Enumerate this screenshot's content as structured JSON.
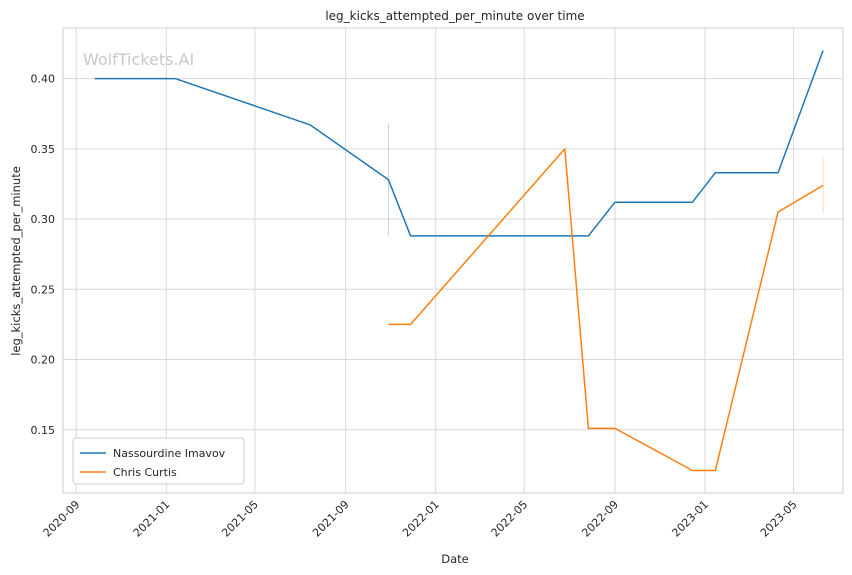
{
  "chart_data": {
    "type": "line",
    "title": "leg_kicks_attempted_per_minute over time",
    "xlabel": "Date",
    "ylabel": "leg_kicks_attempted_per_minute",
    "watermark": "WolfTickets.AI",
    "x_type": "date",
    "xlim": [
      "2020-08-14",
      "2023-07-07"
    ],
    "ylim": [
      0.105,
      0.436
    ],
    "x_ticks": [
      "2020-09",
      "2021-01",
      "2021-05",
      "2021-09",
      "2022-01",
      "2022-05",
      "2022-09",
      "2023-01",
      "2023-05"
    ],
    "y_ticks": [
      "0.15",
      "0.20",
      "0.25",
      "0.30",
      "0.35",
      "0.40"
    ],
    "grid": true,
    "legend_position": "lower-left",
    "series": [
      {
        "name": "Nassourdine Imavov",
        "color": "#1f77b4",
        "points": [
          [
            "2020-09-26",
            0.4
          ],
          [
            "2021-01-13",
            0.4
          ],
          [
            "2021-07-15",
            0.367
          ],
          [
            "2021-10-29",
            0.328
          ],
          [
            "2021-11-28",
            0.288
          ],
          [
            "2022-07-27",
            0.288
          ],
          [
            "2022-09-01",
            0.312
          ],
          [
            "2022-12-15",
            0.312
          ],
          [
            "2023-01-15",
            0.333
          ],
          [
            "2023-04-10",
            0.333
          ],
          [
            "2023-06-10",
            0.42
          ]
        ]
      },
      {
        "name": "Chris Curtis",
        "color": "#ff7f0e",
        "points": [
          [
            "2021-10-29",
            0.225
          ],
          [
            "2021-11-28",
            0.225
          ],
          [
            "2022-06-25",
            0.35
          ],
          [
            "2022-07-27",
            0.151
          ],
          [
            "2022-09-01",
            0.151
          ],
          [
            "2022-12-15",
            0.121
          ],
          [
            "2023-01-15",
            0.121
          ],
          [
            "2023-04-10",
            0.305
          ],
          [
            "2023-06-10",
            0.324
          ]
        ]
      }
    ],
    "error_bars": [
      {
        "series": "Nassourdine Imavov",
        "x": "2021-10-29",
        "low": 0.288,
        "high": 0.368
      },
      {
        "series": "Chris Curtis",
        "x": "2023-06-10",
        "low": 0.304,
        "high": 0.344
      }
    ]
  }
}
